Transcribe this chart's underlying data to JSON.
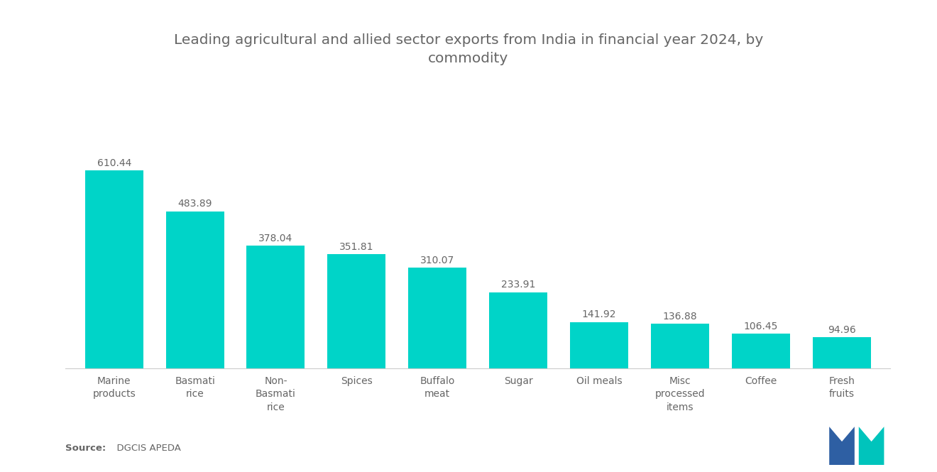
{
  "title": "Leading agricultural and allied sector exports from India in financial year 2024, by\ncommodity",
  "categories": [
    "Marine\nproducts",
    "Basmati\nrice",
    "Non-\nBasmati\nrice",
    "Spices",
    "Buffalo\nmeat",
    "Sugar",
    "Oil meals",
    "Misc\nprocessed\nitems",
    "Coffee",
    "Fresh\nfruits"
  ],
  "values": [
    610.44,
    483.89,
    378.04,
    351.81,
    310.07,
    233.91,
    141.92,
    136.88,
    106.45,
    94.96
  ],
  "bar_color": "#00D4C8",
  "background_color": "#ffffff",
  "title_color": "#666666",
  "label_color": "#666666",
  "source_bold": "Source:",
  "source_normal": "  DGCIS APEDA",
  "ylim": [
    0,
    700
  ],
  "title_fontsize": 14.5,
  "label_fontsize": 10,
  "value_fontsize": 10,
  "bar_width": 0.72
}
